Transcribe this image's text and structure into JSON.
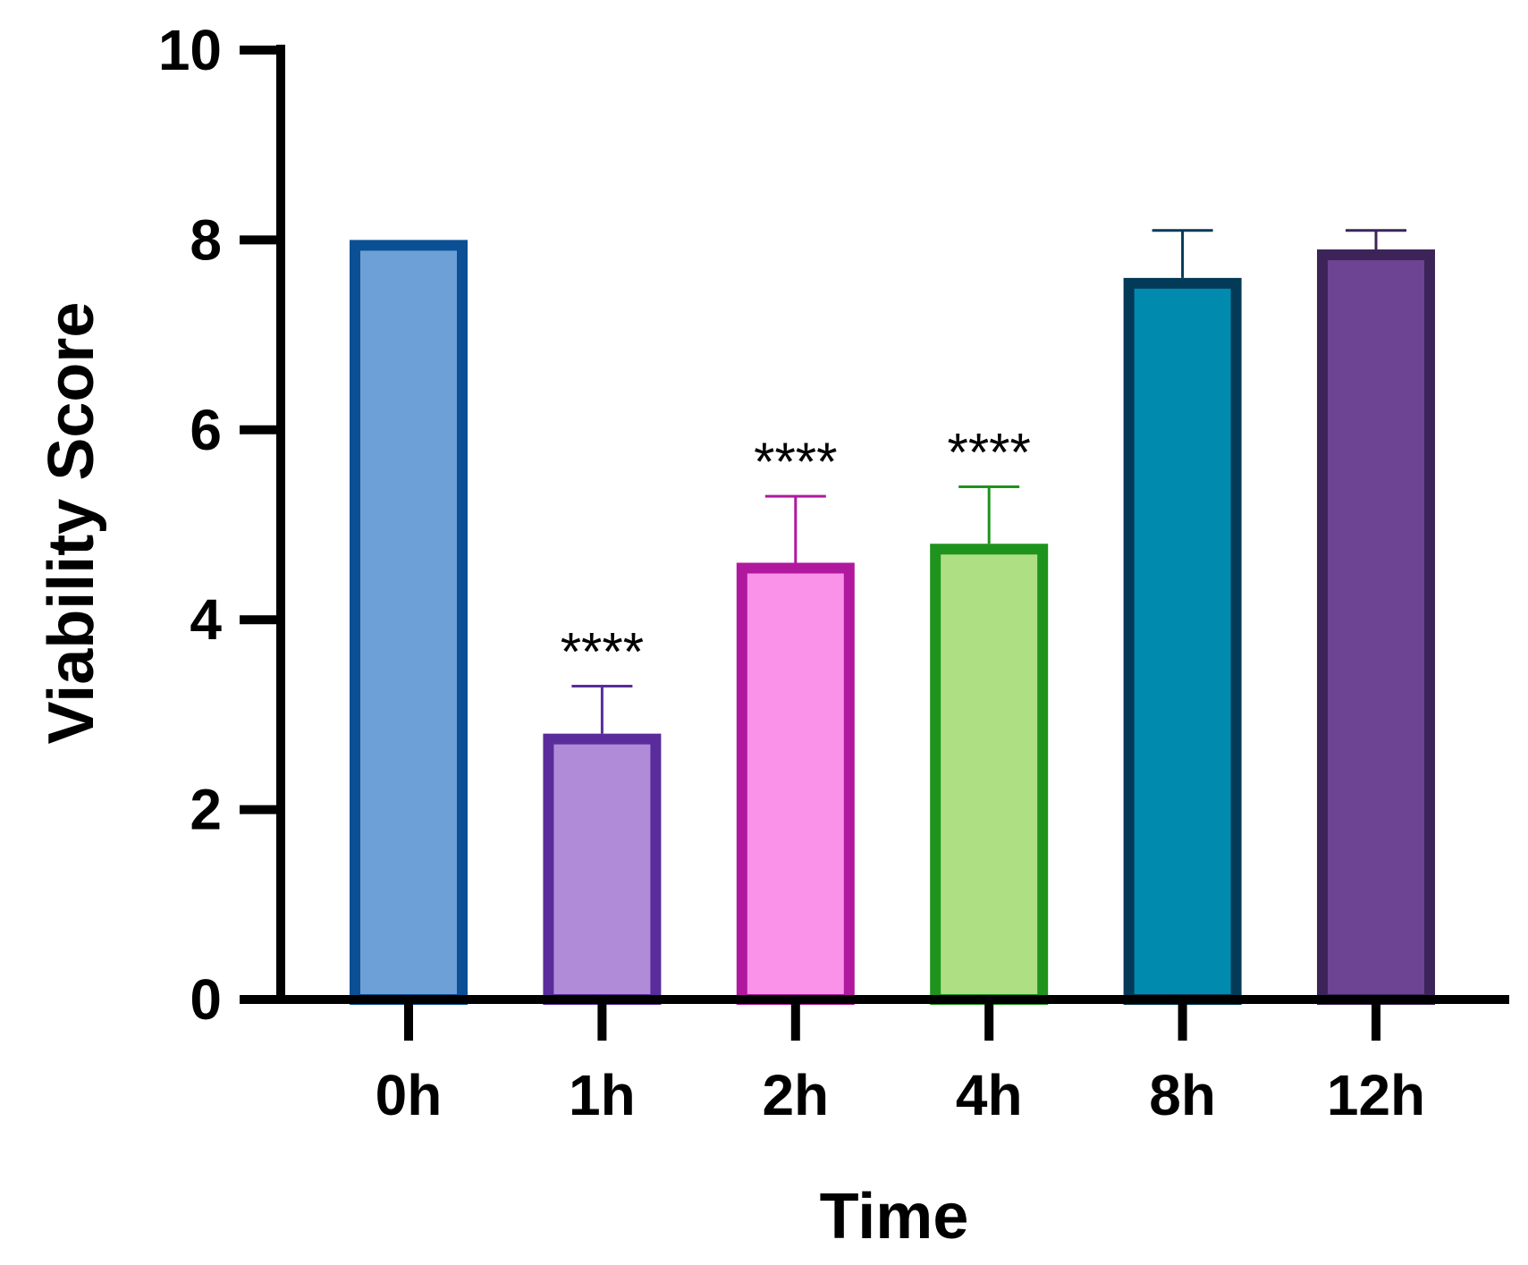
{
  "chart_data": {
    "type": "bar",
    "title": "",
    "xlabel": "Time",
    "ylabel": "Viability Score",
    "categories": [
      "0h",
      "1h",
      "2h",
      "4h",
      "8h",
      "12h"
    ],
    "values": [
      8.0,
      2.8,
      4.6,
      4.8,
      7.6,
      7.9
    ],
    "error_upper": [
      0.0,
      0.5,
      0.7,
      0.6,
      0.5,
      0.2
    ],
    "annotations": [
      "",
      "****",
      "****",
      "****",
      "",
      ""
    ],
    "ylim": [
      0,
      10
    ],
    "yticks": [
      0,
      2,
      4,
      6,
      8,
      10
    ],
    "grid": false,
    "legend": "none",
    "bar_fill_colors": [
      "#6CA0D6",
      "#B08BD8",
      "#FA92EA",
      "#AFDF83",
      "#008AAD",
      "#6D4394"
    ],
    "bar_edge_colors": [
      "#0B4F94",
      "#5A2C9B",
      "#B0189E",
      "#1E931E",
      "#033A57",
      "#3C2458"
    ]
  }
}
